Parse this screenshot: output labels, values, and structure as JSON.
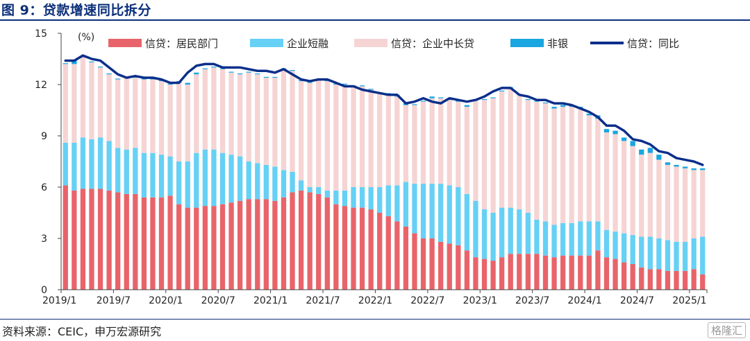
{
  "header": {
    "title": "图 9：贷款增速同比拆分"
  },
  "footer": {
    "source": "资料来源：CEIC，申万宏源研究",
    "watermark": "格隆汇"
  },
  "colors": {
    "household": "#e8646a",
    "corp_short": "#66d0f5",
    "corp_long": "#f6d4d4",
    "nonbank": "#1aa6e0",
    "total": "#0b2f8a"
  },
  "chart_data": {
    "type": "bar",
    "stacked": true,
    "unit_label": "(%)",
    "ylim": [
      0,
      15
    ],
    "yticks": [
      0,
      3,
      6,
      9,
      12,
      15
    ],
    "x_tick_labels": [
      "2019/1",
      "2019/7",
      "2020/1",
      "2020/7",
      "2021/1",
      "2021/7",
      "2022/1",
      "2022/7",
      "2023/1",
      "2023/7",
      "2024/1",
      "2024/7",
      "2025/1"
    ],
    "x_tick_indices": [
      0,
      6,
      12,
      18,
      24,
      30,
      36,
      42,
      48,
      54,
      60,
      66,
      72
    ],
    "categories": [
      "2019/1",
      "2019/2",
      "2019/3",
      "2019/4",
      "2019/5",
      "2019/6",
      "2019/7",
      "2019/8",
      "2019/9",
      "2019/10",
      "2019/11",
      "2019/12",
      "2020/1",
      "2020/2",
      "2020/3",
      "2020/4",
      "2020/5",
      "2020/6",
      "2020/7",
      "2020/8",
      "2020/9",
      "2020/10",
      "2020/11",
      "2020/12",
      "2021/1",
      "2021/2",
      "2021/3",
      "2021/4",
      "2021/5",
      "2021/6",
      "2021/7",
      "2021/8",
      "2021/9",
      "2021/10",
      "2021/11",
      "2021/12",
      "2022/1",
      "2022/2",
      "2022/3",
      "2022/4",
      "2022/5",
      "2022/6",
      "2022/7",
      "2022/8",
      "2022/9",
      "2022/10",
      "2022/11",
      "2022/12",
      "2023/1",
      "2023/2",
      "2023/3",
      "2023/4",
      "2023/5",
      "2023/6",
      "2023/7",
      "2023/8",
      "2023/9",
      "2023/10",
      "2023/11",
      "2023/12",
      "2024/1",
      "2024/2",
      "2024/3",
      "2024/4",
      "2024/5",
      "2024/6",
      "2024/7",
      "2024/8",
      "2024/9",
      "2024/10",
      "2024/11",
      "2024/12",
      "2025/1",
      "2025/2"
    ],
    "series": [
      {
        "name": "信贷：居民部门",
        "key": "household",
        "kind": "bar",
        "values": [
          6.1,
          5.8,
          5.9,
          5.9,
          5.9,
          5.8,
          5.7,
          5.6,
          5.6,
          5.4,
          5.4,
          5.4,
          5.5,
          5.0,
          4.8,
          4.8,
          4.9,
          4.9,
          5.0,
          5.1,
          5.2,
          5.3,
          5.3,
          5.3,
          5.2,
          5.4,
          5.7,
          5.8,
          5.7,
          5.6,
          5.4,
          5.0,
          4.9,
          4.8,
          4.8,
          4.7,
          4.5,
          4.3,
          4.0,
          3.7,
          3.3,
          3.0,
          3.0,
          2.8,
          2.7,
          2.6,
          2.3,
          1.9,
          1.8,
          1.7,
          1.9,
          2.1,
          2.1,
          2.1,
          2.1,
          2.0,
          1.9,
          2.0,
          2.0,
          2.0,
          2.0,
          2.3,
          1.9,
          1.8,
          1.6,
          1.5,
          1.3,
          1.2,
          1.2,
          1.1,
          1.1,
          1.1,
          1.2,
          0.9
        ]
      },
      {
        "name": "企业短融",
        "key": "corp_short",
        "kind": "bar",
        "values": [
          2.5,
          2.8,
          3.0,
          2.9,
          3.0,
          2.9,
          2.6,
          2.6,
          2.7,
          2.6,
          2.6,
          2.5,
          2.3,
          2.5,
          2.7,
          3.2,
          3.3,
          3.3,
          3.0,
          2.8,
          2.6,
          2.2,
          2.1,
          2.0,
          2.0,
          1.6,
          1.2,
          0.6,
          0.3,
          0.4,
          0.4,
          0.8,
          0.9,
          1.2,
          1.2,
          1.3,
          1.5,
          1.8,
          2.1,
          2.6,
          2.9,
          3.2,
          3.2,
          3.4,
          3.4,
          3.4,
          3.3,
          3.3,
          2.9,
          2.8,
          2.9,
          2.7,
          2.6,
          2.4,
          2.0,
          2.0,
          1.9,
          1.9,
          1.9,
          2.0,
          2.0,
          1.7,
          1.6,
          1.6,
          1.7,
          1.7,
          1.8,
          1.9,
          1.8,
          1.8,
          1.7,
          1.7,
          1.8,
          2.2
        ]
      },
      {
        "name": "信贷：企业中长贷",
        "key": "corp_long",
        "kind": "bar",
        "values": [
          4.6,
          4.6,
          4.7,
          4.5,
          4.1,
          3.9,
          4.0,
          4.2,
          4.1,
          4.3,
          4.3,
          4.3,
          4.2,
          4.6,
          4.5,
          4.6,
          4.7,
          4.8,
          4.9,
          4.8,
          4.8,
          5.2,
          5.2,
          5.1,
          5.2,
          5.9,
          5.9,
          5.8,
          6.1,
          6.3,
          6.4,
          6.2,
          6.2,
          5.9,
          5.9,
          5.7,
          5.5,
          5.3,
          5.2,
          4.5,
          4.6,
          4.8,
          5.0,
          5.0,
          5.0,
          5.0,
          5.1,
          5.9,
          6.4,
          6.7,
          6.8,
          7.0,
          6.7,
          6.6,
          6.9,
          6.9,
          6.8,
          6.8,
          6.8,
          6.6,
          6.2,
          6.0,
          5.7,
          5.7,
          5.4,
          5.2,
          4.8,
          4.9,
          4.6,
          4.4,
          4.4,
          4.3,
          4.0,
          3.9
        ]
      },
      {
        "name": "非银",
        "key": "nonbank",
        "kind": "bar",
        "values": [
          0.05,
          0.2,
          0.05,
          0.05,
          0.05,
          0.05,
          0.05,
          0.05,
          0.05,
          0.05,
          0.05,
          0.05,
          0.05,
          0.1,
          0.1,
          0.1,
          0.05,
          0.05,
          0.05,
          0.05,
          0.05,
          0.05,
          0.05,
          0.05,
          0.05,
          0.05,
          0.05,
          0.05,
          0.05,
          0.05,
          0.05,
          0.05,
          0.05,
          0.05,
          0.05,
          0.05,
          0.05,
          0.1,
          0.1,
          0.1,
          0.05,
          0.05,
          0.1,
          0.05,
          0.1,
          0.1,
          0.1,
          0.05,
          0.05,
          0.05,
          0.05,
          0.05,
          0.05,
          0.05,
          0.05,
          0.05,
          0.1,
          0.1,
          0.1,
          0.1,
          0.1,
          0.2,
          0.2,
          0.2,
          0.2,
          0.3,
          0.3,
          0.3,
          0.3,
          0.15,
          0.1,
          0.1,
          0.1,
          0.1
        ]
      },
      {
        "name": "信贷：同比",
        "key": "total",
        "kind": "line",
        "values": [
          13.4,
          13.4,
          13.7,
          13.5,
          13.4,
          13.0,
          12.6,
          12.4,
          12.5,
          12.4,
          12.4,
          12.3,
          12.1,
          12.1,
          12.7,
          13.1,
          13.2,
          13.2,
          13.0,
          13.0,
          13.0,
          12.9,
          12.8,
          12.8,
          12.7,
          12.9,
          12.6,
          12.3,
          12.2,
          12.3,
          12.3,
          12.1,
          11.9,
          11.9,
          11.7,
          11.6,
          11.5,
          11.4,
          11.4,
          10.9,
          11.0,
          11.2,
          11.0,
          10.9,
          11.2,
          11.1,
          11.0,
          11.1,
          11.3,
          11.6,
          11.8,
          11.8,
          11.4,
          11.3,
          11.1,
          11.1,
          10.9,
          10.9,
          10.8,
          10.6,
          10.4,
          10.1,
          9.6,
          9.6,
          9.3,
          8.8,
          8.7,
          8.5,
          8.1,
          8.0,
          7.7,
          7.6,
          7.5,
          7.3
        ]
      }
    ]
  }
}
